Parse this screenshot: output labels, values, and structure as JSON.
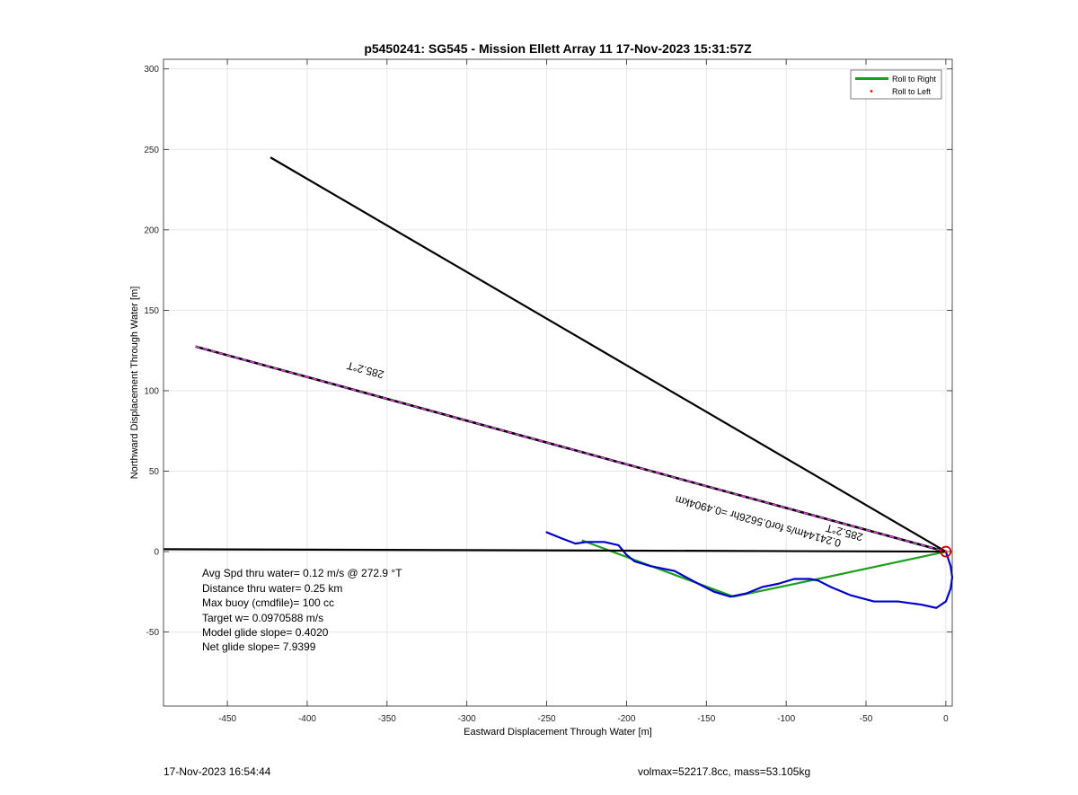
{
  "chart_data": {
    "type": "line",
    "title": "p5450241: SG545 - Mission Ellett Array 11 17-Nov-2023 15:31:57Z",
    "xlabel": "Eastward Displacement Through Water [m]",
    "ylabel": "Northward Displacement Through Water [m]",
    "xlim": [
      -490,
      4
    ],
    "ylim": [
      -96,
      306
    ],
    "xticks": [
      -450,
      -400,
      -350,
      -300,
      -250,
      -200,
      -150,
      -100,
      -50,
      0
    ],
    "yticks": [
      -50,
      0,
      50,
      100,
      150,
      200,
      250,
      300
    ],
    "grid": true,
    "legend_position": "top-right",
    "legend": [
      {
        "label": "Roll to Right",
        "color": "#1aa01a",
        "style": "line"
      },
      {
        "label": "Roll to Left",
        "color": "#ff0000",
        "style": "dot"
      }
    ],
    "series": [
      {
        "name": "Roll to Right",
        "color": "#1aa01a",
        "x": [
          0,
          -80,
          -133,
          -228
        ],
        "y": [
          0,
          -17,
          -28,
          7
        ]
      },
      {
        "color": "#0000cc",
        "x": [
          -250,
          -240,
          -232,
          -225,
          -214,
          -205,
          -200,
          -195,
          -185,
          -170,
          -155,
          -145,
          -135,
          -125,
          -115,
          -105,
          -95,
          -85,
          -80,
          -72,
          -60,
          -45,
          -30,
          -15,
          -6,
          0,
          3,
          4,
          3,
          1,
          0
        ],
        "y": [
          12,
          8,
          5,
          6,
          6,
          4,
          -2,
          -6,
          -9,
          -12,
          -20,
          -25,
          -28,
          -26,
          -22,
          -20,
          -17,
          -17,
          -18,
          -22,
          -27,
          -31,
          -31,
          -33,
          -35,
          -31,
          -23,
          -16,
          -9,
          -3,
          0
        ]
      },
      {
        "color": "#000000",
        "x": [
          -470,
          0
        ],
        "y": [
          127.5,
          0
        ]
      },
      {
        "color": "#000000",
        "x": [
          -423,
          0
        ],
        "y": [
          245,
          0
        ]
      },
      {
        "color": "#000000",
        "x": [
          -490,
          0
        ],
        "y": [
          1.5,
          0
        ]
      }
    ],
    "marker": {
      "x": 0,
      "y": 0,
      "color": "#cc0000"
    },
    "annotations": [
      {
        "text": "285.2°T",
        "x": -363,
        "y": 115,
        "angle": 195
      },
      {
        "text": "285.2°T",
        "x": -63,
        "y": 14,
        "angle": 195
      },
      {
        "text": "0.24144m/s for0.5626hr =0.4904km",
        "x": -117,
        "y": 21,
        "angle": 195
      }
    ],
    "stats": [
      "Avg Spd thru water=  0.12 m/s @ 272.9 °T",
      "Distance thru water=  0.25 km",
      "Max buoy (cmdfile)= 100 cc",
      "Target w= 0.0970588 m/s",
      "Model glide slope= 0.4020",
      "Net glide slope= 7.9399"
    ]
  },
  "footer": {
    "timestamp": "17-Nov-2023 16:54:44",
    "info": "volmax=52217.8cc, mass=53.105kg"
  }
}
